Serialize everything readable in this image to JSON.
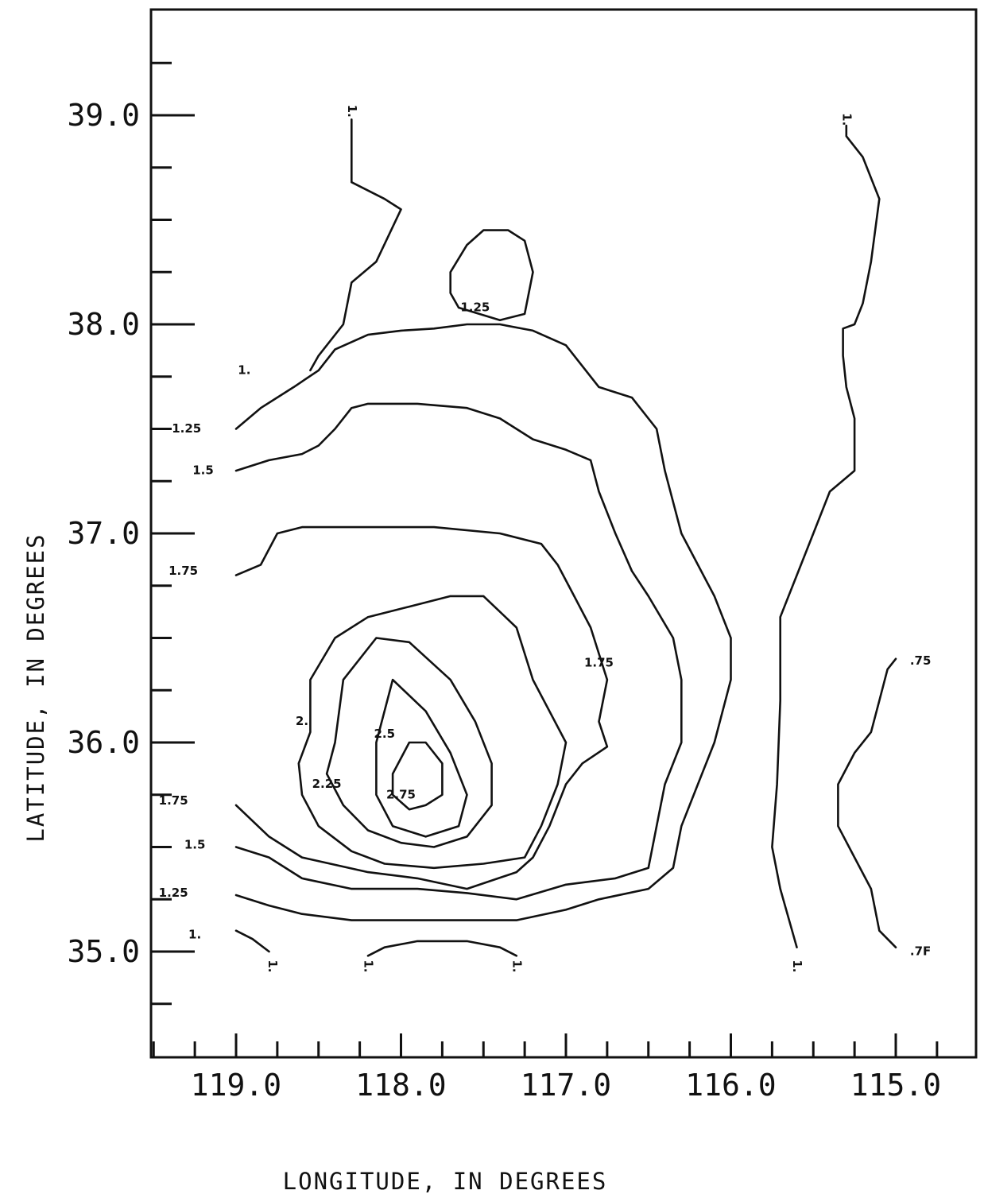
{
  "chart_data": {
    "type": "contour",
    "xlabel": "LONGITUDE, IN DEGREES",
    "ylabel": "LATITUDE, IN DEGREES",
    "x_ticks": [
      "119.0",
      "118.0",
      "117.0",
      "116.0",
      "115.0"
    ],
    "y_ticks": [
      "39.0",
      "38.0",
      "37.0",
      "36.0",
      "35.0"
    ],
    "x_tick_values": [
      119.0,
      118.0,
      117.0,
      116.0,
      115.0
    ],
    "y_tick_values": [
      39.0,
      38.0,
      37.0,
      36.0,
      35.0
    ],
    "xlim": [
      119.5,
      114.5
    ],
    "ylim": [
      34.5,
      39.5
    ],
    "x_reversed": true,
    "minor_tick_step": 0.25,
    "contours": [
      {
        "level": "1.",
        "points": [
          [
            118.3,
            38.98
          ],
          [
            118.3,
            38.68
          ],
          [
            118.1,
            38.6
          ],
          [
            118.0,
            38.55
          ],
          [
            118.15,
            38.3
          ],
          [
            118.3,
            38.2
          ],
          [
            118.35,
            38.0
          ],
          [
            118.5,
            37.85
          ],
          [
            118.55,
            37.78
          ]
        ]
      },
      {
        "level": "1.25",
        "points": [
          [
            117.65,
            38.08
          ],
          [
            117.4,
            38.02
          ],
          [
            117.25,
            38.05
          ],
          [
            117.2,
            38.25
          ],
          [
            117.25,
            38.4
          ],
          [
            117.35,
            38.45
          ],
          [
            117.5,
            38.45
          ],
          [
            117.6,
            38.38
          ],
          [
            117.7,
            38.25
          ],
          [
            117.7,
            38.15
          ],
          [
            117.65,
            38.08
          ]
        ]
      },
      {
        "level": "1.25",
        "points": [
          [
            119.0,
            37.5
          ],
          [
            118.85,
            37.6
          ],
          [
            118.65,
            37.7
          ],
          [
            118.5,
            37.78
          ],
          [
            118.4,
            37.88
          ],
          [
            118.2,
            37.95
          ],
          [
            118.0,
            37.97
          ],
          [
            117.8,
            37.98
          ],
          [
            117.6,
            38.0
          ],
          [
            117.4,
            38.0
          ],
          [
            117.2,
            37.97
          ],
          [
            117.0,
            37.9
          ],
          [
            116.9,
            37.8
          ],
          [
            116.8,
            37.7
          ],
          [
            116.6,
            37.65
          ],
          [
            116.45,
            37.5
          ],
          [
            116.4,
            37.3
          ],
          [
            116.3,
            37.0
          ],
          [
            116.1,
            36.7
          ],
          [
            116.0,
            36.5
          ],
          [
            116.0,
            36.3
          ],
          [
            116.1,
            36.0
          ],
          [
            116.2,
            35.8
          ],
          [
            116.3,
            35.6
          ],
          [
            116.35,
            35.4
          ],
          [
            116.5,
            35.3
          ],
          [
            116.8,
            35.25
          ],
          [
            117.0,
            35.2
          ],
          [
            117.3,
            35.15
          ],
          [
            117.6,
            35.15
          ],
          [
            117.9,
            35.15
          ],
          [
            118.3,
            35.15
          ],
          [
            118.6,
            35.18
          ],
          [
            118.8,
            35.22
          ],
          [
            119.0,
            35.27
          ]
        ]
      },
      {
        "level": "1.5",
        "points": [
          [
            119.0,
            37.3
          ],
          [
            118.8,
            37.35
          ],
          [
            118.6,
            37.38
          ],
          [
            118.5,
            37.42
          ],
          [
            118.4,
            37.5
          ],
          [
            118.3,
            37.6
          ],
          [
            118.2,
            37.62
          ],
          [
            117.9,
            37.62
          ],
          [
            117.6,
            37.6
          ],
          [
            117.4,
            37.55
          ],
          [
            117.2,
            37.45
          ],
          [
            117.0,
            37.4
          ],
          [
            116.85,
            37.35
          ],
          [
            116.8,
            37.2
          ],
          [
            116.7,
            37.0
          ],
          [
            116.6,
            36.82
          ],
          [
            116.5,
            36.7
          ],
          [
            116.35,
            36.5
          ],
          [
            116.3,
            36.3
          ],
          [
            116.3,
            36.0
          ],
          [
            116.4,
            35.8
          ],
          [
            116.45,
            35.6
          ],
          [
            116.5,
            35.4
          ],
          [
            116.7,
            35.35
          ],
          [
            117.0,
            35.32
          ],
          [
            117.3,
            35.25
          ],
          [
            117.6,
            35.28
          ],
          [
            117.9,
            35.3
          ],
          [
            118.3,
            35.3
          ],
          [
            118.6,
            35.35
          ],
          [
            118.8,
            35.45
          ],
          [
            119.0,
            35.5
          ]
        ]
      },
      {
        "level": "1.75",
        "points": [
          [
            119.0,
            36.8
          ],
          [
            118.85,
            36.85
          ],
          [
            118.75,
            37.0
          ],
          [
            118.6,
            37.03
          ],
          [
            118.2,
            37.03
          ],
          [
            117.8,
            37.03
          ],
          [
            117.4,
            37.0
          ],
          [
            117.15,
            36.95
          ],
          [
            117.05,
            36.85
          ],
          [
            116.95,
            36.7
          ],
          [
            116.85,
            36.55
          ],
          [
            116.75,
            36.3
          ],
          [
            116.8,
            36.1
          ],
          [
            116.75,
            35.98
          ],
          [
            116.9,
            35.9
          ],
          [
            117.0,
            35.8
          ],
          [
            117.1,
            35.6
          ],
          [
            117.2,
            35.45
          ],
          [
            117.3,
            35.38
          ],
          [
            117.6,
            35.3
          ],
          [
            117.9,
            35.35
          ],
          [
            118.2,
            35.38
          ],
          [
            118.6,
            35.45
          ],
          [
            118.8,
            35.55
          ],
          [
            119.0,
            35.7
          ]
        ]
      },
      {
        "level": "2.",
        "points": [
          [
            118.55,
            36.05
          ],
          [
            118.55,
            36.3
          ],
          [
            118.4,
            36.5
          ],
          [
            118.2,
            36.6
          ],
          [
            117.95,
            36.65
          ],
          [
            117.7,
            36.7
          ],
          [
            117.5,
            36.7
          ],
          [
            117.3,
            36.55
          ],
          [
            117.2,
            36.3
          ],
          [
            117.0,
            36.0
          ],
          [
            117.05,
            35.8
          ],
          [
            117.15,
            35.6
          ],
          [
            117.25,
            35.45
          ],
          [
            117.5,
            35.42
          ],
          [
            117.8,
            35.4
          ],
          [
            118.1,
            35.42
          ],
          [
            118.3,
            35.48
          ],
          [
            118.5,
            35.6
          ],
          [
            118.6,
            35.75
          ],
          [
            118.62,
            35.9
          ],
          [
            118.55,
            36.05
          ]
        ]
      },
      {
        "level": "2.25",
        "points": [
          [
            118.4,
            36.0
          ],
          [
            118.35,
            36.3
          ],
          [
            118.15,
            36.5
          ],
          [
            117.95,
            36.48
          ],
          [
            117.7,
            36.3
          ],
          [
            117.55,
            36.1
          ],
          [
            117.45,
            35.9
          ],
          [
            117.45,
            35.7
          ],
          [
            117.6,
            35.55
          ],
          [
            117.8,
            35.5
          ],
          [
            118.0,
            35.52
          ],
          [
            118.2,
            35.58
          ],
          [
            118.35,
            35.7
          ],
          [
            118.45,
            35.85
          ],
          [
            118.4,
            36.0
          ]
        ]
      },
      {
        "level": "2.5",
        "points": [
          [
            118.15,
            36.0
          ],
          [
            118.05,
            36.3
          ],
          [
            117.85,
            36.15
          ],
          [
            117.7,
            35.95
          ],
          [
            117.6,
            35.75
          ],
          [
            117.65,
            35.6
          ],
          [
            117.85,
            35.55
          ],
          [
            118.05,
            35.6
          ],
          [
            118.15,
            35.75
          ],
          [
            118.15,
            36.0
          ]
        ]
      },
      {
        "level": "2.75",
        "points": [
          [
            118.05,
            35.85
          ],
          [
            117.95,
            36.0
          ],
          [
            117.85,
            36.0
          ],
          [
            117.75,
            35.9
          ],
          [
            117.75,
            35.75
          ],
          [
            117.85,
            35.7
          ],
          [
            117.95,
            35.68
          ],
          [
            118.05,
            35.75
          ],
          [
            118.05,
            35.85
          ]
        ]
      },
      {
        "level": "1.",
        "points": [
          [
            119.0,
            35.1
          ],
          [
            118.9,
            35.06
          ],
          [
            118.8,
            35.0
          ]
        ]
      },
      {
        "level": "1.",
        "points": [
          [
            118.2,
            34.98
          ],
          [
            118.1,
            35.02
          ],
          [
            117.9,
            35.05
          ],
          [
            117.6,
            35.05
          ],
          [
            117.4,
            35.02
          ],
          [
            117.3,
            34.98
          ]
        ]
      },
      {
        "level": "1.",
        "points": [
          [
            115.3,
            38.95
          ],
          [
            115.3,
            38.9
          ],
          [
            115.2,
            38.8
          ],
          [
            115.1,
            38.6
          ],
          [
            115.15,
            38.3
          ],
          [
            115.2,
            38.1
          ],
          [
            115.25,
            38.0
          ],
          [
            115.32,
            37.98
          ],
          [
            115.32,
            37.85
          ],
          [
            115.3,
            37.7
          ],
          [
            115.25,
            37.55
          ],
          [
            115.25,
            37.3
          ],
          [
            115.4,
            37.2
          ],
          [
            115.5,
            37.0
          ],
          [
            115.6,
            36.8
          ],
          [
            115.7,
            36.6
          ],
          [
            115.7,
            36.2
          ],
          [
            115.72,
            35.8
          ],
          [
            115.75,
            35.5
          ],
          [
            115.7,
            35.3
          ],
          [
            115.6,
            35.02
          ]
        ]
      },
      {
        "level": ".75",
        "points": [
          [
            115.0,
            36.4
          ],
          [
            115.05,
            36.35
          ],
          [
            115.1,
            36.2
          ],
          [
            115.15,
            36.05
          ],
          [
            115.25,
            35.95
          ],
          [
            115.35,
            35.8
          ],
          [
            115.35,
            35.6
          ],
          [
            115.25,
            35.45
          ],
          [
            115.15,
            35.3
          ],
          [
            115.1,
            35.1
          ],
          [
            115.0,
            35.02
          ]
        ]
      }
    ],
    "labels": [
      {
        "text": "1.",
        "lon": 118.3,
        "lat": 39.02,
        "rotate": true
      },
      {
        "text": "1.",
        "lon": 115.3,
        "lat": 38.98,
        "rotate": true
      },
      {
        "text": "1.25",
        "lon": 117.55,
        "lat": 38.08
      },
      {
        "text": "1.",
        "lon": 118.95,
        "lat": 37.78
      },
      {
        "text": "1.25",
        "lon": 119.3,
        "lat": 37.5
      },
      {
        "text": "1.5",
        "lon": 119.2,
        "lat": 37.3
      },
      {
        "text": "1.75",
        "lon": 119.32,
        "lat": 36.82
      },
      {
        "text": "1.75",
        "lon": 116.8,
        "lat": 36.38
      },
      {
        "text": ".75",
        "lon": 114.85,
        "lat": 36.39
      },
      {
        "text": "2.",
        "lon": 118.6,
        "lat": 36.1
      },
      {
        "text": "2.5",
        "lon": 118.1,
        "lat": 36.04
      },
      {
        "text": "2.25",
        "lon": 118.45,
        "lat": 35.8
      },
      {
        "text": "2.75",
        "lon": 118.0,
        "lat": 35.75
      },
      {
        "text": "1.75",
        "lon": 119.38,
        "lat": 35.72
      },
      {
        "text": "1.5",
        "lon": 119.25,
        "lat": 35.51
      },
      {
        "text": "1.25",
        "lon": 119.38,
        "lat": 35.28
      },
      {
        "text": "1.",
        "lon": 119.25,
        "lat": 35.08
      },
      {
        "text": ".7F",
        "lon": 114.85,
        "lat": 35.0
      },
      {
        "text": "1.",
        "lon": 118.78,
        "lat": 34.93,
        "rotate": true
      },
      {
        "text": "1.",
        "lon": 118.2,
        "lat": 34.93,
        "rotate": true
      },
      {
        "text": "1.",
        "lon": 117.3,
        "lat": 34.93,
        "rotate": true
      },
      {
        "text": "1.",
        "lon": 115.6,
        "lat": 34.93,
        "rotate": true
      }
    ]
  }
}
